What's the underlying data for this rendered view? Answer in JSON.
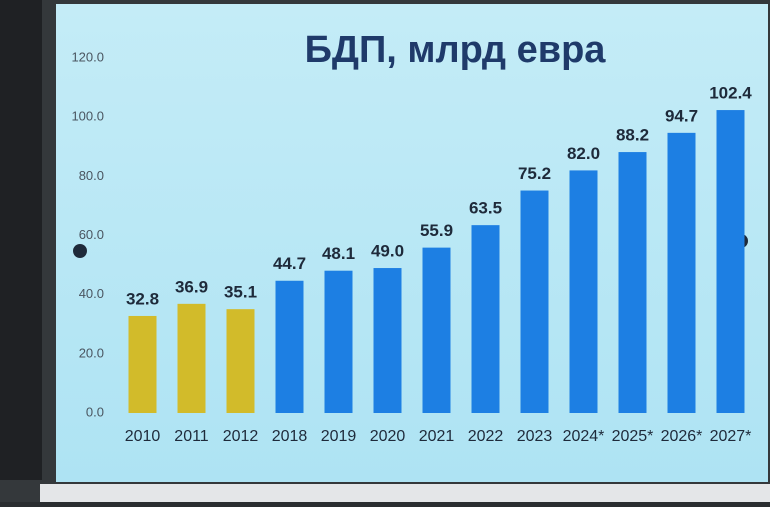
{
  "chart_data": {
    "type": "bar",
    "title": "БДП, млрд евра",
    "categories": [
      "2010",
      "2011",
      "2012",
      "2018",
      "2019",
      "2020",
      "2021",
      "2022",
      "2023",
      "2024*",
      "2025*",
      "2026*",
      "2027*"
    ],
    "values": [
      32.8,
      36.9,
      35.1,
      44.7,
      48.1,
      49.0,
      55.9,
      63.5,
      75.2,
      82.0,
      88.2,
      94.7,
      102.4
    ],
    "value_labels": [
      "32.8",
      "36.9",
      "35.1",
      "44.7",
      "48.1",
      "49.0",
      "55.9",
      "63.5",
      "75.2",
      "82.0",
      "88.2",
      "94.7",
      "102.4"
    ],
    "colors": [
      "#d2bb2a",
      "#d2bb2a",
      "#d2bb2a",
      "#1d7fe3",
      "#1d7fe3",
      "#1d7fe3",
      "#1d7fe3",
      "#1d7fe3",
      "#1d7fe3",
      "#1d7fe3",
      "#1d7fe3",
      "#1d7fe3",
      "#1d7fe3"
    ],
    "ylim": [
      0,
      120
    ],
    "yticks": [
      {
        "value": 0,
        "label": "0.0"
      },
      {
        "value": 20,
        "label": "20.0"
      },
      {
        "value": 40,
        "label": "40.0"
      },
      {
        "value": 60,
        "label": "60.0"
      },
      {
        "value": 80,
        "label": "80.0"
      },
      {
        "value": 100,
        "label": "100.0"
      },
      {
        "value": 120,
        "label": "120.0"
      }
    ],
    "grid": false
  }
}
